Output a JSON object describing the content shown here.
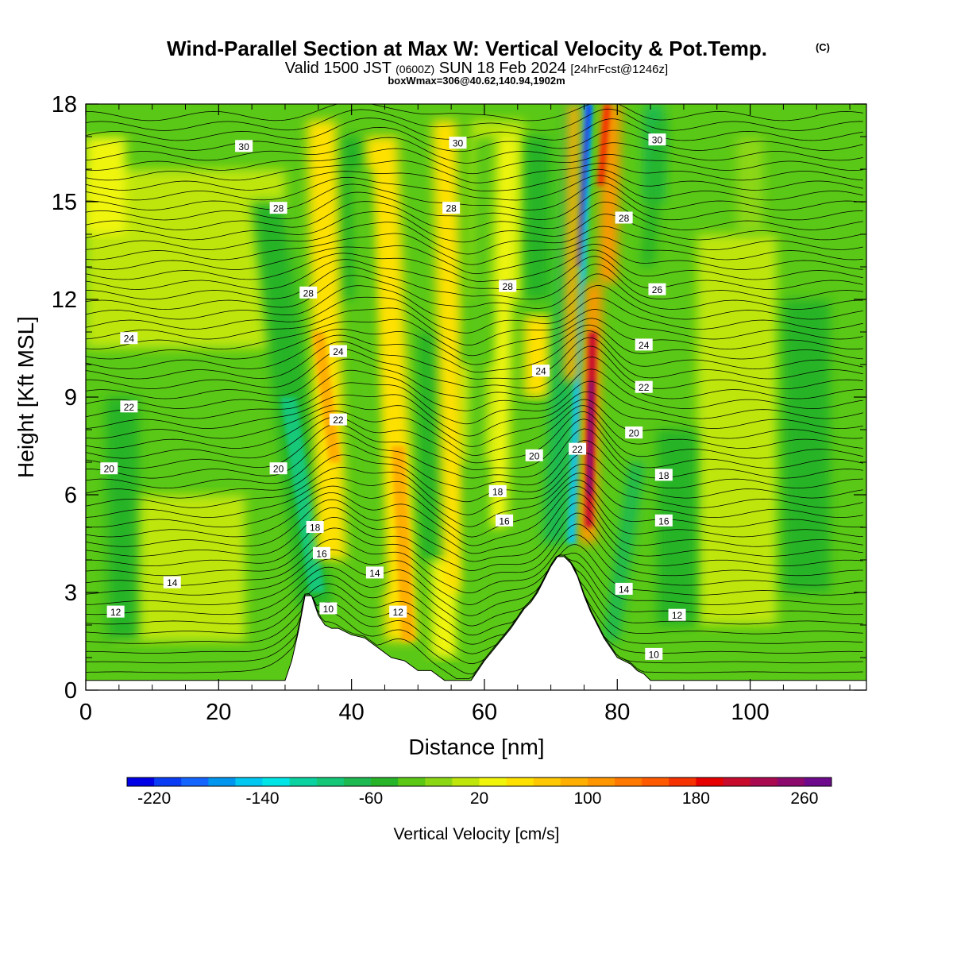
{
  "chart_data": {
    "type": "heatmap",
    "title": "Wind-Parallel Section at Max W: Vertical Velocity & Pot.Temp.",
    "title_mark": "(C)",
    "subtitle": {
      "part1": "Valid 1500 JST",
      "part2": "(0600Z)",
      "part3": "SUN 18 Feb 2024",
      "part4": "[24hrFcst@1246z]"
    },
    "subtitle2": "boxWmax=306@40.62,140.94,1902m",
    "xlabel": "Distance [nm]",
    "ylabel": "Height [Kft MSL]",
    "xlim": [
      0,
      117.5
    ],
    "ylim": [
      0,
      18
    ],
    "x_ticks": [
      0,
      20,
      40,
      60,
      80,
      100
    ],
    "y_ticks": [
      0,
      3,
      6,
      9,
      12,
      15,
      18
    ],
    "colorbar": {
      "label": "Vertical Velocity [cm/s]",
      "min": -240,
      "step": 20,
      "tick_labels": [
        -220,
        -140,
        -60,
        20,
        100,
        180,
        260
      ],
      "colors": [
        "#0000e6",
        "#0a3cf5",
        "#1464ff",
        "#0096f0",
        "#00c8f0",
        "#00e6e6",
        "#0ad2a0",
        "#14c878",
        "#1eb950",
        "#28b428",
        "#5ac814",
        "#8cd714",
        "#bee60a",
        "#f0f50a",
        "#ffe100",
        "#ffc800",
        "#ffaf00",
        "#ff9600",
        "#ff7800",
        "#ff5a00",
        "#f53200",
        "#e60000",
        "#c80a2d",
        "#aa0a50",
        "#8c0a6e",
        "#6e0a8c"
      ]
    },
    "terrain": {
      "distance_nm": [
        0,
        30,
        31,
        32,
        33,
        34,
        35,
        36,
        37,
        38,
        40,
        42,
        44,
        46,
        48,
        50,
        52,
        54,
        56,
        58,
        60,
        62,
        64,
        66,
        67,
        68,
        69,
        70,
        71,
        72,
        73,
        74,
        75,
        76,
        77,
        78,
        79,
        80,
        81,
        82,
        83,
        84,
        85,
        86,
        90,
        117.5
      ],
      "height_kft": [
        0.3,
        0.3,
        0.9,
        1.8,
        2.9,
        2.9,
        2.3,
        2.0,
        1.9,
        1.9,
        1.7,
        1.6,
        1.3,
        1.0,
        0.9,
        0.6,
        0.6,
        0.3,
        0.3,
        0.3,
        0.9,
        1.4,
        1.9,
        2.5,
        2.7,
        3.0,
        3.4,
        3.8,
        4.1,
        4.1,
        3.9,
        3.5,
        2.9,
        2.4,
        2.0,
        1.6,
        1.3,
        1.0,
        0.9,
        0.8,
        0.6,
        0.5,
        0.3,
        0.3,
        0.3,
        0.3
      ]
    },
    "updraft_bands": [
      {
        "x_bottom_nm": 48.5,
        "x_top_nm": 45.0,
        "w_cm_s": 90
      },
      {
        "x_bottom_nm": 75.8,
        "x_top_nm": 80.0,
        "w_cm_s": 306
      }
    ],
    "downdraft_bands": [
      {
        "x_bottom_nm": 35.0,
        "x_top_nm": 27.5,
        "w_cm_s": -100
      },
      {
        "x_bottom_nm": 73.5,
        "x_top_nm": 76.0,
        "w_cm_s": -220
      }
    ],
    "isentrope_labels": [
      {
        "text": "30",
        "x": 23.8,
        "y": 16.7
      },
      {
        "text": "30",
        "x": 56.0,
        "y": 16.8
      },
      {
        "text": "30",
        "x": 86.0,
        "y": 16.9
      },
      {
        "text": "28",
        "x": 29.0,
        "y": 14.8
      },
      {
        "text": "28",
        "x": 55.0,
        "y": 14.8
      },
      {
        "text": "28",
        "x": 81.0,
        "y": 14.5
      },
      {
        "text": "28",
        "x": 33.5,
        "y": 12.2
      },
      {
        "text": "28",
        "x": 63.5,
        "y": 12.4
      },
      {
        "text": "26",
        "x": 86.0,
        "y": 12.3
      },
      {
        "text": "24",
        "x": 6.5,
        "y": 10.8
      },
      {
        "text": "24",
        "x": 38.0,
        "y": 10.4
      },
      {
        "text": "24",
        "x": 68.5,
        "y": 9.8
      },
      {
        "text": "24",
        "x": 84.0,
        "y": 10.6
      },
      {
        "text": "22",
        "x": 6.5,
        "y": 8.7
      },
      {
        "text": "22",
        "x": 38.0,
        "y": 8.3
      },
      {
        "text": "22",
        "x": 84.0,
        "y": 9.3
      },
      {
        "text": "22",
        "x": 74.0,
        "y": 7.4
      },
      {
        "text": "20",
        "x": 3.5,
        "y": 6.8
      },
      {
        "text": "20",
        "x": 29.0,
        "y": 6.8
      },
      {
        "text": "20",
        "x": 67.5,
        "y": 7.2
      },
      {
        "text": "20",
        "x": 82.5,
        "y": 7.9
      },
      {
        "text": "18",
        "x": 87.0,
        "y": 6.6
      },
      {
        "text": "18",
        "x": 62.0,
        "y": 6.1
      },
      {
        "text": "16",
        "x": 63.0,
        "y": 5.2
      },
      {
        "text": "16",
        "x": 87.0,
        "y": 5.2
      },
      {
        "text": "18",
        "x": 34.5,
        "y": 5.0
      },
      {
        "text": "16",
        "x": 35.5,
        "y": 4.2
      },
      {
        "text": "14",
        "x": 13.0,
        "y": 3.3
      },
      {
        "text": "14",
        "x": 43.5,
        "y": 3.6
      },
      {
        "text": "14",
        "x": 81.0,
        "y": 3.1
      },
      {
        "text": "12",
        "x": 4.5,
        "y": 2.4
      },
      {
        "text": "10",
        "x": 36.5,
        "y": 2.5
      },
      {
        "text": "12",
        "x": 47.0,
        "y": 2.4
      },
      {
        "text": "12",
        "x": 89.0,
        "y": 2.3
      },
      {
        "text": "10",
        "x": 85.5,
        "y": 1.1
      }
    ]
  }
}
